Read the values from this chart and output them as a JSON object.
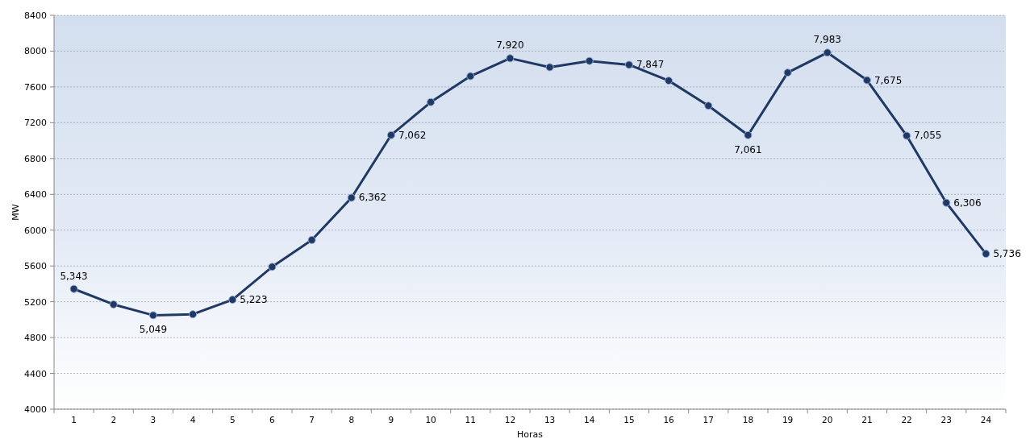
{
  "chart_data": {
    "type": "line",
    "xlabel": "Horas",
    "ylabel": "MW",
    "categories": [
      "1",
      "2",
      "3",
      "4",
      "5",
      "6",
      "7",
      "8",
      "9",
      "10",
      "11",
      "12",
      "13",
      "14",
      "15",
      "16",
      "17",
      "18",
      "19",
      "20",
      "21",
      "22",
      "23",
      "24"
    ],
    "series": [
      {
        "color": "#1f3864",
        "values": [
          5343,
          5170,
          5049,
          5060,
          5223,
          5590,
          5890,
          6362,
          7062,
          7430,
          7720,
          7920,
          7820,
          7890,
          7847,
          7670,
          7390,
          7061,
          7760,
          7983,
          7675,
          7055,
          6306,
          5736
        ],
        "value_labels": [
          "5,343",
          null,
          "5,049",
          null,
          "5,223",
          null,
          null,
          "6,362",
          "7,062",
          null,
          null,
          "7,920",
          null,
          null,
          "7,847",
          null,
          null,
          "7,061",
          null,
          "7,983",
          "7,675",
          "7,055",
          "6,306",
          "5,736"
        ]
      }
    ],
    "ylim": [
      4000,
      8400
    ],
    "yticks": [
      4000,
      4400,
      4800,
      5200,
      5600,
      6000,
      6400,
      6800,
      7200,
      7600,
      8000,
      8400
    ],
    "grid": "y",
    "marker": "circle",
    "line_style": "solid"
  }
}
